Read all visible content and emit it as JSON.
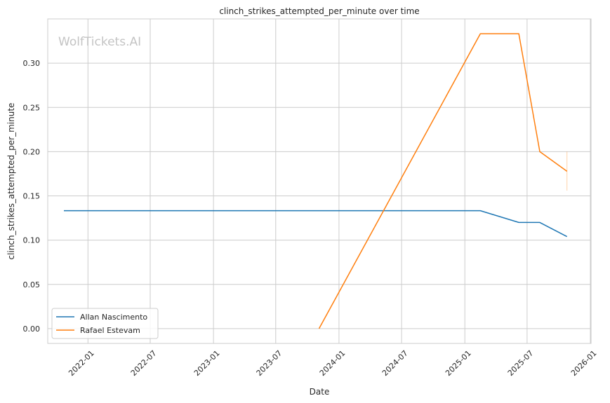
{
  "chart_data": {
    "type": "line",
    "title": "clinch_strikes_attempted_per_minute over time",
    "xlabel": "Date",
    "ylabel": "clinch_strikes_attempted_per_minute",
    "watermark": "WolfTickets.AI",
    "x_ticks": [
      "2022-01",
      "2022-07",
      "2023-01",
      "2023-07",
      "2024-01",
      "2024-07",
      "2025-01",
      "2025-07",
      "2026-01"
    ],
    "y_ticks": [
      "0.00",
      "0.05",
      "0.10",
      "0.15",
      "0.20",
      "0.25",
      "0.30"
    ],
    "xlim": [
      "2021-09-06",
      "2026-01-03"
    ],
    "ylim": [
      -0.0167,
      0.35
    ],
    "grid": true,
    "legend_position": "lower-left",
    "series": [
      {
        "name": "Allan Nascimento",
        "color": "#1f77b4",
        "x": [
          "2021-10-23",
          "2025-02-15",
          "2025-06-07",
          "2025-08-07",
          "2025-10-25"
        ],
        "y": [
          0.1333,
          0.1333,
          0.12,
          0.12,
          0.104
        ]
      },
      {
        "name": "Rafael Estevam",
        "color": "#ff7f0e",
        "x": [
          "2023-11-04",
          "2025-02-15",
          "2025-06-07",
          "2025-08-07",
          "2025-10-25"
        ],
        "y": [
          0.0,
          0.3333,
          0.3333,
          0.2,
          0.1778
        ],
        "error_bar": {
          "x": "2025-10-25",
          "low": 0.156,
          "high": 0.2
        }
      }
    ]
  }
}
